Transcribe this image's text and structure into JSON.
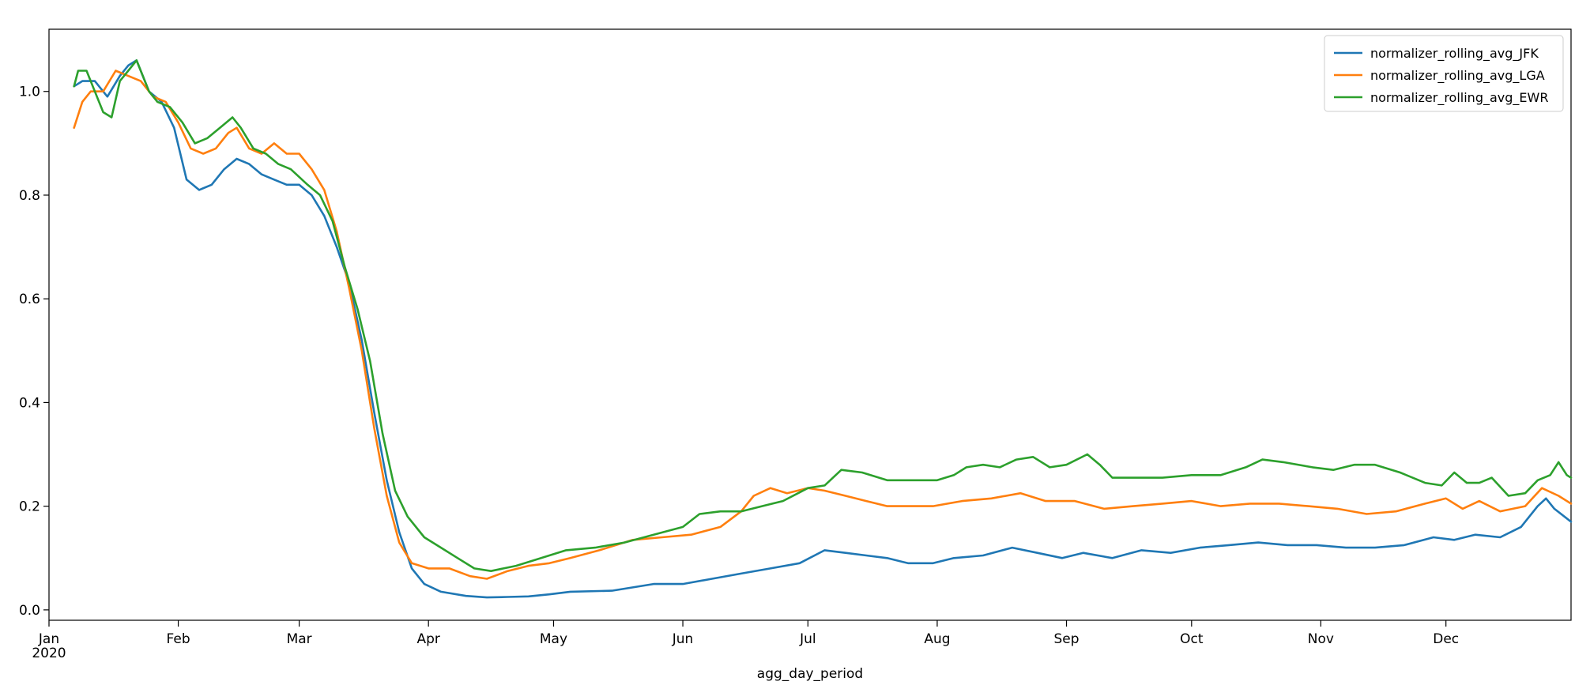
{
  "chart_data": {
    "type": "line",
    "title": "",
    "xlabel": "agg_day_period",
    "ylabel": "",
    "xlim": [
      "2020-01-01",
      "2020-12-31"
    ],
    "ylim": [
      -0.02,
      1.12
    ],
    "y_ticks": [
      0.0,
      0.2,
      0.4,
      0.6,
      0.8,
      1.0
    ],
    "y_tick_labels": [
      "0.0",
      "0.2",
      "0.4",
      "0.6",
      "0.8",
      "1.0"
    ],
    "x_ticks": [
      {
        "date": "2020-01-01",
        "label": "Jan",
        "sublabel": "2020"
      },
      {
        "date": "2020-02-01",
        "label": "Feb",
        "sublabel": ""
      },
      {
        "date": "2020-03-01",
        "label": "Mar",
        "sublabel": ""
      },
      {
        "date": "2020-04-01",
        "label": "Apr",
        "sublabel": ""
      },
      {
        "date": "2020-05-01",
        "label": "May",
        "sublabel": ""
      },
      {
        "date": "2020-06-01",
        "label": "Jun",
        "sublabel": ""
      },
      {
        "date": "2020-07-01",
        "label": "Jul",
        "sublabel": ""
      },
      {
        "date": "2020-08-01",
        "label": "Aug",
        "sublabel": ""
      },
      {
        "date": "2020-09-01",
        "label": "Sep",
        "sublabel": ""
      },
      {
        "date": "2020-10-01",
        "label": "Oct",
        "sublabel": ""
      },
      {
        "date": "2020-11-01",
        "label": "Nov",
        "sublabel": ""
      },
      {
        "date": "2020-12-01",
        "label": "Dec",
        "sublabel": ""
      }
    ],
    "grid": false,
    "legend_position": "top-right",
    "series": [
      {
        "name": "normalizer_rolling_avg_JFK",
        "color": "#1f77b4",
        "points": [
          [
            "2020-01-07",
            1.01
          ],
          [
            "2020-01-09",
            1.02
          ],
          [
            "2020-01-12",
            1.02
          ],
          [
            "2020-01-15",
            0.99
          ],
          [
            "2020-01-18",
            1.03
          ],
          [
            "2020-01-20",
            1.05
          ],
          [
            "2020-01-22",
            1.06
          ],
          [
            "2020-01-25",
            1.0
          ],
          [
            "2020-01-28",
            0.98
          ],
          [
            "2020-01-31",
            0.93
          ],
          [
            "2020-02-03",
            0.83
          ],
          [
            "2020-02-06",
            0.81
          ],
          [
            "2020-02-09",
            0.82
          ],
          [
            "2020-02-12",
            0.85
          ],
          [
            "2020-02-15",
            0.87
          ],
          [
            "2020-02-18",
            0.86
          ],
          [
            "2020-02-21",
            0.84
          ],
          [
            "2020-02-24",
            0.83
          ],
          [
            "2020-02-27",
            0.82
          ],
          [
            "2020-03-01",
            0.82
          ],
          [
            "2020-03-04",
            0.8
          ],
          [
            "2020-03-07",
            0.76
          ],
          [
            "2020-03-10",
            0.7
          ],
          [
            "2020-03-13",
            0.63
          ],
          [
            "2020-03-16",
            0.52
          ],
          [
            "2020-03-19",
            0.38
          ],
          [
            "2020-03-22",
            0.25
          ],
          [
            "2020-03-25",
            0.15
          ],
          [
            "2020-03-28",
            0.08
          ],
          [
            "2020-03-31",
            0.05
          ],
          [
            "2020-04-04",
            0.035
          ],
          [
            "2020-04-10",
            0.027
          ],
          [
            "2020-04-15",
            0.024
          ],
          [
            "2020-04-20",
            0.025
          ],
          [
            "2020-04-25",
            0.026
          ],
          [
            "2020-04-30",
            0.03
          ],
          [
            "2020-05-05",
            0.035
          ],
          [
            "2020-05-15",
            0.037
          ],
          [
            "2020-05-25",
            0.05
          ],
          [
            "2020-06-01",
            0.05
          ],
          [
            "2020-06-08",
            0.06
          ],
          [
            "2020-06-15",
            0.07
          ],
          [
            "2020-06-22",
            0.08
          ],
          [
            "2020-06-29",
            0.09
          ],
          [
            "2020-07-05",
            0.115
          ],
          [
            "2020-07-10",
            0.11
          ],
          [
            "2020-07-15",
            0.105
          ],
          [
            "2020-07-20",
            0.1
          ],
          [
            "2020-07-25",
            0.09
          ],
          [
            "2020-07-31",
            0.09
          ],
          [
            "2020-08-05",
            0.1
          ],
          [
            "2020-08-12",
            0.105
          ],
          [
            "2020-08-19",
            0.12
          ],
          [
            "2020-08-25",
            0.11
          ],
          [
            "2020-08-31",
            0.1
          ],
          [
            "2020-09-05",
            0.11
          ],
          [
            "2020-09-12",
            0.1
          ],
          [
            "2020-09-19",
            0.115
          ],
          [
            "2020-09-26",
            0.11
          ],
          [
            "2020-10-03",
            0.12
          ],
          [
            "2020-10-10",
            0.125
          ],
          [
            "2020-10-17",
            0.13
          ],
          [
            "2020-10-24",
            0.125
          ],
          [
            "2020-10-31",
            0.125
          ],
          [
            "2020-11-07",
            0.12
          ],
          [
            "2020-11-14",
            0.12
          ],
          [
            "2020-11-21",
            0.125
          ],
          [
            "2020-11-28",
            0.14
          ],
          [
            "2020-12-03",
            0.135
          ],
          [
            "2020-12-08",
            0.145
          ],
          [
            "2020-12-14",
            0.14
          ],
          [
            "2020-12-19",
            0.16
          ],
          [
            "2020-12-23",
            0.2
          ],
          [
            "2020-12-25",
            0.215
          ],
          [
            "2020-12-27",
            0.195
          ],
          [
            "2020-12-31",
            0.17
          ]
        ]
      },
      {
        "name": "normalizer_rolling_avg_LGA",
        "color": "#ff7f0e",
        "points": [
          [
            "2020-01-07",
            0.93
          ],
          [
            "2020-01-09",
            0.98
          ],
          [
            "2020-01-11",
            1.0
          ],
          [
            "2020-01-14",
            1.0
          ],
          [
            "2020-01-17",
            1.04
          ],
          [
            "2020-01-20",
            1.03
          ],
          [
            "2020-01-23",
            1.02
          ],
          [
            "2020-01-26",
            0.99
          ],
          [
            "2020-01-29",
            0.98
          ],
          [
            "2020-02-01",
            0.94
          ],
          [
            "2020-02-04",
            0.89
          ],
          [
            "2020-02-07",
            0.88
          ],
          [
            "2020-02-10",
            0.89
          ],
          [
            "2020-02-13",
            0.92
          ],
          [
            "2020-02-15",
            0.93
          ],
          [
            "2020-02-18",
            0.89
          ],
          [
            "2020-02-21",
            0.88
          ],
          [
            "2020-02-24",
            0.9
          ],
          [
            "2020-02-27",
            0.88
          ],
          [
            "2020-03-01",
            0.88
          ],
          [
            "2020-03-04",
            0.85
          ],
          [
            "2020-03-07",
            0.81
          ],
          [
            "2020-03-10",
            0.73
          ],
          [
            "2020-03-13",
            0.62
          ],
          [
            "2020-03-16",
            0.5
          ],
          [
            "2020-03-19",
            0.35
          ],
          [
            "2020-03-22",
            0.22
          ],
          [
            "2020-03-25",
            0.13
          ],
          [
            "2020-03-28",
            0.09
          ],
          [
            "2020-04-01",
            0.08
          ],
          [
            "2020-04-06",
            0.08
          ],
          [
            "2020-04-11",
            0.065
          ],
          [
            "2020-04-15",
            0.06
          ],
          [
            "2020-04-20",
            0.075
          ],
          [
            "2020-04-25",
            0.085
          ],
          [
            "2020-04-30",
            0.09
          ],
          [
            "2020-05-05",
            0.1
          ],
          [
            "2020-05-12",
            0.115
          ],
          [
            "2020-05-20",
            0.135
          ],
          [
            "2020-05-27",
            0.14
          ],
          [
            "2020-06-03",
            0.145
          ],
          [
            "2020-06-10",
            0.16
          ],
          [
            "2020-06-15",
            0.19
          ],
          [
            "2020-06-18",
            0.22
          ],
          [
            "2020-06-22",
            0.235
          ],
          [
            "2020-06-26",
            0.225
          ],
          [
            "2020-07-01",
            0.235
          ],
          [
            "2020-07-05",
            0.23
          ],
          [
            "2020-07-10",
            0.22
          ],
          [
            "2020-07-15",
            0.21
          ],
          [
            "2020-07-20",
            0.2
          ],
          [
            "2020-07-31",
            0.2
          ],
          [
            "2020-08-07",
            0.21
          ],
          [
            "2020-08-14",
            0.215
          ],
          [
            "2020-08-21",
            0.225
          ],
          [
            "2020-08-27",
            0.21
          ],
          [
            "2020-09-03",
            0.21
          ],
          [
            "2020-09-10",
            0.195
          ],
          [
            "2020-09-17",
            0.2
          ],
          [
            "2020-09-24",
            0.205
          ],
          [
            "2020-10-01",
            0.21
          ],
          [
            "2020-10-08",
            0.2
          ],
          [
            "2020-10-15",
            0.205
          ],
          [
            "2020-10-22",
            0.205
          ],
          [
            "2020-10-29",
            0.2
          ],
          [
            "2020-11-05",
            0.195
          ],
          [
            "2020-11-12",
            0.185
          ],
          [
            "2020-11-19",
            0.19
          ],
          [
            "2020-11-26",
            0.205
          ],
          [
            "2020-12-01",
            0.215
          ],
          [
            "2020-12-05",
            0.195
          ],
          [
            "2020-12-09",
            0.21
          ],
          [
            "2020-12-14",
            0.19
          ],
          [
            "2020-12-20",
            0.2
          ],
          [
            "2020-12-24",
            0.235
          ],
          [
            "2020-12-28",
            0.22
          ],
          [
            "2020-12-31",
            0.205
          ]
        ]
      },
      {
        "name": "normalizer_rolling_avg_EWR",
        "color": "#2ca02c",
        "points": [
          [
            "2020-01-07",
            1.01
          ],
          [
            "2020-01-08",
            1.04
          ],
          [
            "2020-01-10",
            1.04
          ],
          [
            "2020-01-12",
            1.0
          ],
          [
            "2020-01-14",
            0.96
          ],
          [
            "2020-01-16",
            0.95
          ],
          [
            "2020-01-18",
            1.02
          ],
          [
            "2020-01-20",
            1.04
          ],
          [
            "2020-01-22",
            1.06
          ],
          [
            "2020-01-25",
            1.0
          ],
          [
            "2020-01-27",
            0.98
          ],
          [
            "2020-01-30",
            0.97
          ],
          [
            "2020-02-02",
            0.94
          ],
          [
            "2020-02-05",
            0.9
          ],
          [
            "2020-02-08",
            0.91
          ],
          [
            "2020-02-11",
            0.93
          ],
          [
            "2020-02-14",
            0.95
          ],
          [
            "2020-02-16",
            0.93
          ],
          [
            "2020-02-19",
            0.89
          ],
          [
            "2020-02-22",
            0.88
          ],
          [
            "2020-02-25",
            0.86
          ],
          [
            "2020-02-28",
            0.85
          ],
          [
            "2020-03-03",
            0.82
          ],
          [
            "2020-03-06",
            0.8
          ],
          [
            "2020-03-09",
            0.75
          ],
          [
            "2020-03-12",
            0.66
          ],
          [
            "2020-03-15",
            0.58
          ],
          [
            "2020-03-18",
            0.48
          ],
          [
            "2020-03-21",
            0.34
          ],
          [
            "2020-03-24",
            0.23
          ],
          [
            "2020-03-27",
            0.18
          ],
          [
            "2020-03-31",
            0.14
          ],
          [
            "2020-04-04",
            0.12
          ],
          [
            "2020-04-08",
            0.1
          ],
          [
            "2020-04-12",
            0.08
          ],
          [
            "2020-04-16",
            0.075
          ],
          [
            "2020-04-22",
            0.085
          ],
          [
            "2020-04-28",
            0.1
          ],
          [
            "2020-05-04",
            0.115
          ],
          [
            "2020-05-11",
            0.12
          ],
          [
            "2020-05-18",
            0.13
          ],
          [
            "2020-05-25",
            0.145
          ],
          [
            "2020-06-01",
            0.16
          ],
          [
            "2020-06-05",
            0.185
          ],
          [
            "2020-06-10",
            0.19
          ],
          [
            "2020-06-15",
            0.19
          ],
          [
            "2020-06-20",
            0.2
          ],
          [
            "2020-06-25",
            0.21
          ],
          [
            "2020-07-01",
            0.235
          ],
          [
            "2020-07-05",
            0.24
          ],
          [
            "2020-07-09",
            0.27
          ],
          [
            "2020-07-14",
            0.265
          ],
          [
            "2020-07-20",
            0.25
          ],
          [
            "2020-07-26",
            0.25
          ],
          [
            "2020-08-01",
            0.25
          ],
          [
            "2020-08-05",
            0.26
          ],
          [
            "2020-08-08",
            0.275
          ],
          [
            "2020-08-12",
            0.28
          ],
          [
            "2020-08-16",
            0.275
          ],
          [
            "2020-08-20",
            0.29
          ],
          [
            "2020-08-24",
            0.295
          ],
          [
            "2020-08-28",
            0.275
          ],
          [
            "2020-09-01",
            0.28
          ],
          [
            "2020-09-06",
            0.3
          ],
          [
            "2020-09-09",
            0.28
          ],
          [
            "2020-09-12",
            0.255
          ],
          [
            "2020-09-17",
            0.255
          ],
          [
            "2020-09-24",
            0.255
          ],
          [
            "2020-10-01",
            0.26
          ],
          [
            "2020-10-08",
            0.26
          ],
          [
            "2020-10-14",
            0.275
          ],
          [
            "2020-10-18",
            0.29
          ],
          [
            "2020-10-23",
            0.285
          ],
          [
            "2020-10-30",
            0.275
          ],
          [
            "2020-11-04",
            0.27
          ],
          [
            "2020-11-09",
            0.28
          ],
          [
            "2020-11-14",
            0.28
          ],
          [
            "2020-11-20",
            0.265
          ],
          [
            "2020-11-26",
            0.245
          ],
          [
            "2020-11-30",
            0.24
          ],
          [
            "2020-12-03",
            0.265
          ],
          [
            "2020-12-06",
            0.245
          ],
          [
            "2020-12-09",
            0.245
          ],
          [
            "2020-12-12",
            0.255
          ],
          [
            "2020-12-16",
            0.22
          ],
          [
            "2020-12-20",
            0.225
          ],
          [
            "2020-12-23",
            0.25
          ],
          [
            "2020-12-26",
            0.26
          ],
          [
            "2020-12-28",
            0.285
          ],
          [
            "2020-12-30",
            0.26
          ],
          [
            "2020-12-31",
            0.255
          ]
        ]
      }
    ]
  }
}
